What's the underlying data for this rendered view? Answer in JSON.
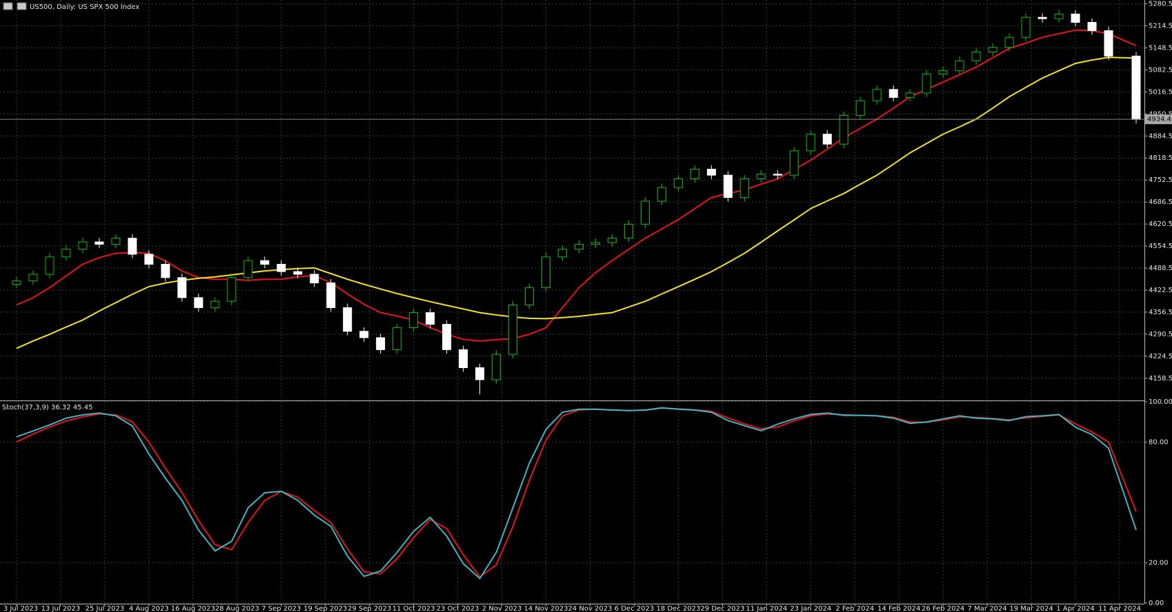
{
  "chart_data": [
    {
      "type": "candlestick",
      "title": "US500, Daily:  US SPX 500 Index",
      "x": [
        0,
        3,
        6,
        9,
        12,
        15,
        18,
        21,
        24,
        27,
        30,
        33,
        36,
        39,
        42,
        45,
        48,
        51,
        54,
        57,
        60,
        63,
        66,
        69,
        72,
        75,
        78,
        81,
        84,
        87,
        90,
        93,
        96,
        99,
        102,
        105,
        108,
        111,
        114,
        117,
        120,
        123,
        126,
        129,
        132,
        135,
        138,
        141,
        144,
        147,
        150,
        153,
        156,
        159,
        162,
        165,
        168,
        171,
        174,
        177,
        180,
        183,
        186,
        189,
        192,
        195,
        198,
        203
      ],
      "open": [
        4440,
        4450,
        4470,
        4522,
        4545,
        4567,
        4560,
        4578,
        4530,
        4500,
        4460,
        4400,
        4370,
        4389,
        4460,
        4511,
        4500,
        4478,
        4470,
        4444,
        4370,
        4299,
        4280,
        4244,
        4310,
        4355,
        4320,
        4244,
        4190,
        4154,
        4230,
        4378,
        4430,
        4522,
        4545,
        4560,
        4565,
        4578,
        4620,
        4689,
        4730,
        4756,
        4785,
        4767,
        4700,
        4756,
        4770,
        4767,
        4840,
        4890,
        4860,
        4946,
        4990,
        5024,
        5000,
        5013,
        5070,
        5080,
        5110,
        5136,
        5150,
        5180,
        5240,
        5236,
        5250,
        5225,
        5200,
        5124
      ],
      "high": [
        4462,
        4482,
        4534,
        4557,
        4579,
        4579,
        4590,
        4590,
        4542,
        4512,
        4472,
        4412,
        4401,
        4472,
        4523,
        4523,
        4512,
        4490,
        4482,
        4456,
        4382,
        4311,
        4292,
        4322,
        4367,
        4367,
        4332,
        4256,
        4202,
        4242,
        4390,
        4442,
        4534,
        4557,
        4572,
        4577,
        4590,
        4632,
        4701,
        4742,
        4768,
        4797,
        4797,
        4779,
        4768,
        4782,
        4782,
        4852,
        4902,
        4902,
        4958,
        5002,
        5036,
        5036,
        5025,
        5082,
        5092,
        5122,
        5148,
        5162,
        5192,
        5252,
        5252,
        5264,
        5262,
        5237,
        5212,
        5136
      ],
      "low": [
        4428,
        4438,
        4458,
        4510,
        4533,
        4548,
        4548,
        4518,
        4488,
        4448,
        4388,
        4358,
        4358,
        4377,
        4448,
        4488,
        4466,
        4458,
        4432,
        4358,
        4287,
        4268,
        4232,
        4232,
        4298,
        4308,
        4232,
        4178,
        4110,
        4142,
        4218,
        4366,
        4418,
        4510,
        4533,
        4548,
        4553,
        4566,
        4608,
        4677,
        4718,
        4744,
        4755,
        4688,
        4688,
        4744,
        4755,
        4755,
        4828,
        4848,
        4848,
        4934,
        4978,
        4988,
        4988,
        5001,
        5058,
        5068,
        5098,
        5124,
        5138,
        5168,
        5224,
        5224,
        5213,
        5188,
        5112,
        4922
      ],
      "close": [
        4450,
        4470,
        4522,
        4545,
        4567,
        4560,
        4578,
        4530,
        4500,
        4460,
        4400,
        4370,
        4389,
        4460,
        4511,
        4500,
        4478,
        4470,
        4444,
        4370,
        4299,
        4280,
        4244,
        4310,
        4355,
        4320,
        4244,
        4190,
        4154,
        4230,
        4378,
        4430,
        4522,
        4545,
        4560,
        4565,
        4578,
        4620,
        4689,
        4730,
        4756,
        4785,
        4767,
        4700,
        4756,
        4770,
        4767,
        4840,
        4890,
        4860,
        4946,
        4990,
        5024,
        5000,
        5013,
        5070,
        5080,
        5110,
        5136,
        5150,
        5180,
        5240,
        5236,
        5250,
        5225,
        5200,
        5124,
        4934.4
      ],
      "up_color": "#00c000",
      "down_color": "#ffffff",
      "lines": [
        {
          "color": "#e8141c",
          "values": [
            4378,
            4400,
            4430,
            4465,
            4500,
            4520,
            4533,
            4535,
            4533,
            4510,
            4480,
            4460,
            4455,
            4455,
            4452,
            4455,
            4455,
            4462,
            4466,
            4445,
            4411,
            4380,
            4355,
            4345,
            4333,
            4310,
            4290,
            4275,
            4270,
            4274,
            4277,
            4290,
            4310,
            4370,
            4430,
            4475,
            4511,
            4545,
            4578,
            4606,
            4634,
            4667,
            4700,
            4712,
            4723,
            4740,
            4756,
            4784,
            4812,
            4845,
            4879,
            4907,
            4935,
            4968,
            5002,
            5024,
            5046,
            5068,
            5091,
            5119,
            5147,
            5163,
            5180,
            5191,
            5202,
            5200,
            5191,
            5155
          ]
        },
        {
          "color": "#f2e41c",
          "values": [
            4248,
            4270,
            4290,
            4312,
            4333,
            4360,
            4385,
            4410,
            4433,
            4444,
            4452,
            4458,
            4462,
            4468,
            4474,
            4480,
            4484,
            4487,
            4489,
            4472,
            4455,
            4440,
            4426,
            4412,
            4400,
            4388,
            4377,
            4366,
            4355,
            4348,
            4342,
            4338,
            4337,
            4340,
            4344,
            4350,
            4355,
            4372,
            4389,
            4411,
            4433,
            4455,
            4478,
            4505,
            4533,
            4566,
            4600,
            4633,
            4667,
            4690,
            4712,
            4740,
            4767,
            4800,
            4834,
            4862,
            4890,
            4912,
            4935,
            4968,
            5002,
            5030,
            5058,
            5080,
            5102,
            5112,
            5120,
            5118
          ]
        }
      ],
      "last_price": 4934.4,
      "xlim": [
        -3,
        204.5
      ],
      "ylim": [
        4094,
        5292
      ],
      "yticks": [
        5280.5,
        5214.5,
        5148.5,
        5082.5,
        5016.5,
        4950.5,
        4884.5,
        4818.5,
        4752.5,
        4686.5,
        4620.5,
        4554.5,
        4488.5,
        4422.5,
        4356.5,
        4290.5,
        4224.5,
        4158.5
      ],
      "grid": true
    },
    {
      "type": "line",
      "title": "Stoch(37,3,9) 36.32 45.45",
      "x": [
        0,
        3,
        6,
        9,
        12,
        15,
        18,
        21,
        24,
        27,
        30,
        33,
        36,
        39,
        42,
        45,
        48,
        51,
        54,
        57,
        60,
        63,
        66,
        69,
        72,
        75,
        78,
        81,
        84,
        87,
        90,
        93,
        96,
        99,
        102,
        105,
        108,
        111,
        114,
        117,
        120,
        123,
        126,
        129,
        132,
        135,
        138,
        141,
        144,
        147,
        150,
        153,
        156,
        159,
        162,
        165,
        168,
        171,
        174,
        177,
        180,
        183,
        186,
        189,
        192,
        195,
        198,
        203
      ],
      "series": [
        {
          "color": "#e8141c",
          "values": [
            80,
            84,
            87.5,
            90.5,
            92.5,
            94,
            93.5,
            90,
            80,
            67,
            55,
            41,
            29,
            26.5,
            40,
            51,
            55.5,
            52.5,
            46,
            40,
            27,
            15.5,
            14.5,
            22,
            32.5,
            41.5,
            37,
            24,
            13,
            19,
            38,
            61,
            81,
            93,
            96,
            96.3,
            96,
            95.6,
            95.8,
            96.8,
            96.5,
            96,
            95.3,
            92,
            89,
            86.5,
            87.5,
            90.5,
            93,
            94,
            93.6,
            93.3,
            93.1,
            92.3,
            90,
            89.8,
            91,
            92.6,
            92.2,
            91.7,
            91,
            92,
            92.8,
            93.5,
            89,
            85,
            80,
            45.45
          ]
        },
        {
          "color": "#3cb8c4",
          "values": [
            82.6,
            85.5,
            88.5,
            91.9,
            93.5,
            94.4,
            93,
            88,
            74,
            62,
            51,
            36.3,
            25.9,
            30.7,
            47.4,
            54.8,
            55.5,
            51,
            43.7,
            38.1,
            23.3,
            13.3,
            15.9,
            25.2,
            35.6,
            42.6,
            33.3,
            19.6,
            12.2,
            25.2,
            47.4,
            69.6,
            86.3,
            94.8,
            96.3,
            96.3,
            95.9,
            95.6,
            95.9,
            97,
            96.3,
            95.9,
            94.8,
            90.7,
            88.1,
            85.6,
            88.9,
            91.5,
            93.7,
            94.4,
            93.3,
            93.3,
            93,
            91.9,
            89.3,
            90,
            91.5,
            93,
            91.9,
            91.5,
            90.7,
            92.6,
            93,
            93.7,
            87.4,
            83.7,
            77,
            36.32
          ]
        }
      ],
      "xlim": [
        -3,
        204.5
      ],
      "ylim": [
        0,
        100
      ],
      "yticks": [
        {
          "value": 100,
          "label": "100.00"
        },
        {
          "value": 80,
          "label": "80.00"
        },
        {
          "value": 20,
          "label": "20.00"
        },
        {
          "value": 0,
          "label": "0.00"
        }
      ],
      "xticks": [
        {
          "value": 0,
          "label": "3 Jul 2023"
        },
        {
          "value": 8,
          "label": "13 Jul 2023"
        },
        {
          "value": 16,
          "label": "25 Jul 2023"
        },
        {
          "value": 24,
          "label": "4 Aug 2023"
        },
        {
          "value": 32,
          "label": "16 Aug 2023"
        },
        {
          "value": 40,
          "label": "28 Aug 2023"
        },
        {
          "value": 48,
          "label": "7 Sep 2023"
        },
        {
          "value": 56,
          "label": "19 Sep 2023"
        },
        {
          "value": 64,
          "label": "29 Sep 2023"
        },
        {
          "value": 72,
          "label": "11 Oct 2023"
        },
        {
          "value": 80,
          "label": "23 Oct 2023"
        },
        {
          "value": 88,
          "label": "2 Nov 2023"
        },
        {
          "value": 96,
          "label": "14 Nov 2023"
        },
        {
          "value": 104,
          "label": "24 Nov 2023"
        },
        {
          "value": 112,
          "label": "6 Dec 2023"
        },
        {
          "value": 120,
          "label": "18 Dec 2023"
        },
        {
          "value": 128,
          "label": "29 Dec 2023"
        },
        {
          "value": 136,
          "label": "11 Jan 2024"
        },
        {
          "value": 144,
          "label": "23 Jan 2024"
        },
        {
          "value": 152,
          "label": "2 Feb 2024"
        },
        {
          "value": 160,
          "label": "14 Feb 2024"
        },
        {
          "value": 168,
          "label": "26 Feb 2024"
        },
        {
          "value": 176,
          "label": "7 Mar 2024"
        },
        {
          "value": 184,
          "label": "19 Mar 2024"
        },
        {
          "value": 192,
          "label": "1 Apr 2024"
        },
        {
          "value": 200,
          "label": "11 Apr 2024"
        }
      ],
      "grid": true
    }
  ]
}
